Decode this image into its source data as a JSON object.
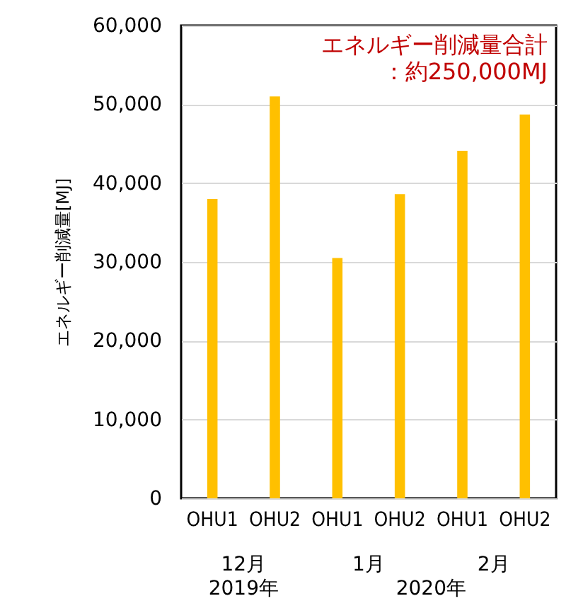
{
  "chart_data": {
    "type": "bar",
    "ylabel": "エネルギー削減量[MJ]",
    "categories": [
      "OHU1",
      "OHU2",
      "OHU1",
      "OHU2",
      "OHU1",
      "OHU2"
    ],
    "values": [
      38000,
      51000,
      30500,
      38600,
      44100,
      48700
    ],
    "color": "#ffc000",
    "ylim": [
      0,
      60000
    ],
    "yticks": [
      0,
      {
        "value": 10000,
        "label": "10,000"
      },
      {
        "value": 20000,
        "label": "20,000"
      },
      {
        "value": 30000,
        "label": "30,000"
      },
      {
        "value": 40000,
        "label": "40,000"
      },
      {
        "value": 50000,
        "label": "50,000"
      },
      {
        "value": 60000,
        "label": "60,000"
      }
    ],
    "grid": "y",
    "annotations": [
      "エネルギー削減量合計",
      "：約250,000MJ",
      "12月",
      "1月",
      "2月",
      "2019年",
      "2020年"
    ]
  }
}
